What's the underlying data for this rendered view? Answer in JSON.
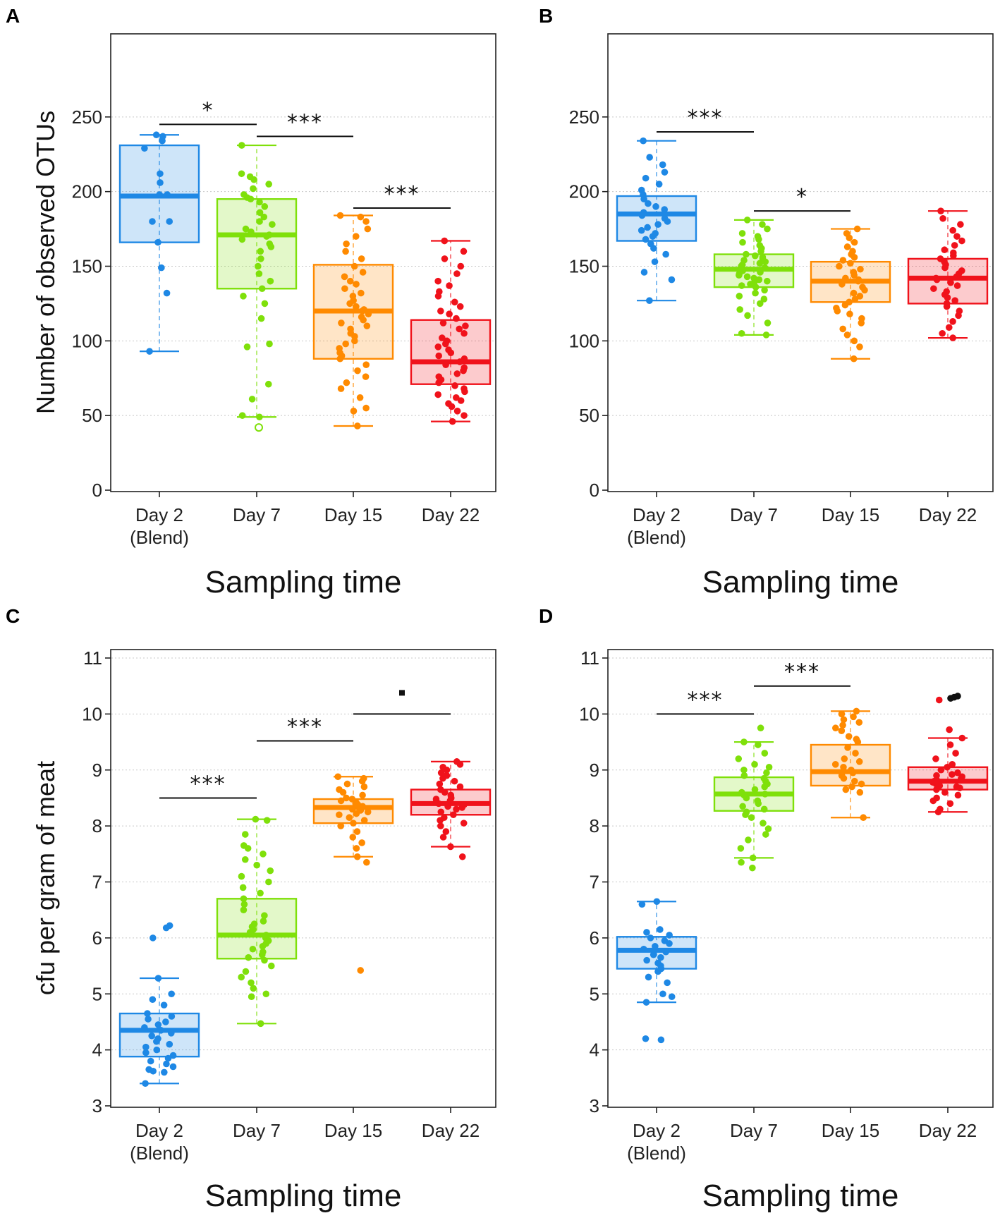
{
  "figure": {
    "x_title": "Sampling time",
    "categories": [
      {
        "line1": "Day 2",
        "line2": "(Blend)"
      },
      {
        "line1": "Day 7",
        "line2": ""
      },
      {
        "line1": "Day 15",
        "line2": ""
      },
      {
        "line1": "Day 22",
        "line2": ""
      }
    ],
    "colors": [
      "#1E88E5",
      "#7FE00A",
      "#FF8A00",
      "#F0121B"
    ]
  },
  "chart_data": [
    {
      "panel": "A",
      "type": "box",
      "xlabel": "Sampling time",
      "ylabel": "Number of observed  OTUs",
      "ylim": [
        0,
        300
      ],
      "yticks": [
        0,
        50,
        100,
        150,
        200,
        250
      ],
      "boxes": [
        {
          "category": "Day 2 (Blend)",
          "q1": 166,
          "median": 197,
          "q3": 231,
          "whisker_low": 93,
          "whisker_high": 238,
          "points": [
            93,
            132,
            149,
            166,
            180,
            180,
            198,
            198,
            206,
            212,
            229,
            234,
            237,
            238
          ]
        },
        {
          "category": "Day 7",
          "q1": 135,
          "median": 171,
          "q3": 195,
          "whisker_low": 49,
          "whisker_high": 231,
          "points": [
            49,
            50,
            61,
            71,
            96,
            98,
            115,
            125,
            130,
            135,
            140,
            145,
            150,
            155,
            160,
            163,
            165,
            168,
            170,
            171,
            173,
            175,
            178,
            180,
            183,
            186,
            190,
            193,
            195,
            196,
            198,
            202,
            205,
            208,
            210,
            212,
            231
          ],
          "outliers_open": [
            42
          ]
        },
        {
          "category": "Day 15",
          "q1": 88,
          "median": 120,
          "q3": 151,
          "whisker_low": 43,
          "whisker_high": 184,
          "points": [
            43,
            53,
            55,
            62,
            68,
            72,
            76,
            80,
            84,
            88,
            90,
            92,
            95,
            98,
            100,
            103,
            105,
            108,
            110,
            112,
            114,
            116,
            118,
            120,
            121,
            123,
            125,
            127,
            130,
            132,
            135,
            138,
            140,
            143,
            146,
            150,
            155,
            160,
            165,
            170,
            175,
            180,
            183,
            184
          ]
        },
        {
          "category": "Day 22",
          "q1": 71,
          "median": 86,
          "q3": 114,
          "whisker_low": 46,
          "whisker_high": 167,
          "points": [
            46,
            50,
            53,
            56,
            58,
            60,
            62,
            64,
            66,
            68,
            70,
            72,
            74,
            76,
            78,
            80,
            82,
            84,
            86,
            88,
            90,
            92,
            94,
            96,
            98,
            100,
            102,
            105,
            108,
            110,
            112,
            115,
            118,
            120,
            123,
            126,
            130,
            133,
            137,
            140,
            145,
            150,
            155,
            160,
            167
          ]
        }
      ],
      "significance": [
        {
          "from": 0,
          "to": 1,
          "y": 245,
          "label": "*"
        },
        {
          "from": 1,
          "to": 2,
          "y": 237,
          "label": "***"
        },
        {
          "from": 2,
          "to": 3,
          "y": 189,
          "label": "***"
        }
      ]
    },
    {
      "panel": "B",
      "type": "box",
      "xlabel": "Sampling time",
      "ylabel": "",
      "ylim": [
        0,
        300
      ],
      "yticks": [
        0,
        50,
        100,
        150,
        200,
        250
      ],
      "boxes": [
        {
          "category": "Day 2 (Blend)",
          "q1": 167,
          "median": 185,
          "q3": 197,
          "whisker_low": 127,
          "whisker_high": 234,
          "points": [
            127,
            141,
            146,
            153,
            158,
            162,
            165,
            168,
            170,
            172,
            174,
            176,
            178,
            180,
            182,
            184,
            186,
            188,
            190,
            192,
            195,
            198,
            201,
            205,
            209,
            213,
            218,
            223,
            234
          ]
        },
        {
          "category": "Day 7",
          "q1": 136,
          "median": 148,
          "q3": 158,
          "whisker_low": 104,
          "whisker_high": 181,
          "points": [
            104,
            105,
            112,
            117,
            121,
            125,
            128,
            130,
            132,
            134,
            136,
            137,
            138,
            139,
            140,
            141,
            142,
            143,
            144,
            145,
            146,
            147,
            148,
            149,
            150,
            151,
            152,
            153,
            154,
            155,
            156,
            157,
            158,
            160,
            162,
            164,
            166,
            168,
            170,
            172,
            175,
            178,
            181
          ]
        },
        {
          "category": "Day 15",
          "q1": 126,
          "median": 140,
          "q3": 153,
          "whisker_low": 88,
          "whisker_high": 175,
          "points": [
            88,
            96,
            100,
            104,
            108,
            112,
            115,
            118,
            120,
            122,
            124,
            126,
            128,
            130,
            132,
            134,
            136,
            138,
            140,
            141,
            142,
            144,
            146,
            148,
            150,
            152,
            154,
            156,
            158,
            160,
            163,
            166,
            169,
            172,
            175
          ]
        },
        {
          "category": "Day 22",
          "q1": 125,
          "median": 142,
          "q3": 155,
          "whisker_low": 102,
          "whisker_high": 187,
          "points": [
            102,
            105,
            109,
            113,
            117,
            120,
            123,
            125,
            127,
            129,
            131,
            133,
            135,
            137,
            139,
            141,
            142,
            143,
            145,
            147,
            149,
            151,
            153,
            155,
            157,
            159,
            161,
            164,
            167,
            170,
            174,
            178,
            182,
            187
          ]
        }
      ],
      "significance": [
        {
          "from": 0,
          "to": 1,
          "y": 240,
          "label": "***"
        },
        {
          "from": 1,
          "to": 2,
          "y": 187,
          "label": "*"
        }
      ]
    },
    {
      "panel": "C",
      "type": "box",
      "xlabel": "Sampling time",
      "ylabel": "cfu per gram of meat",
      "ylim": [
        3,
        11
      ],
      "yticks": [
        3,
        4,
        5,
        6,
        7,
        8,
        9,
        10,
        11
      ],
      "boxes": [
        {
          "category": "Day 2 (Blend)",
          "q1": 3.88,
          "median": 4.35,
          "q3": 4.65,
          "whisker_low": 3.4,
          "whisker_high": 5.28,
          "points": [
            3.4,
            3.6,
            3.62,
            3.65,
            3.7,
            3.75,
            3.8,
            3.85,
            3.9,
            3.95,
            4.0,
            4.05,
            4.1,
            4.15,
            4.2,
            4.25,
            4.3,
            4.35,
            4.4,
            4.45,
            4.5,
            4.55,
            4.6,
            4.65,
            4.8,
            4.9,
            5.0,
            5.28,
            6.0,
            6.18,
            6.22
          ]
        },
        {
          "category": "Day 7",
          "q1": 5.63,
          "median": 6.05,
          "q3": 6.7,
          "whisker_low": 4.47,
          "whisker_high": 8.12,
          "points": [
            4.47,
            4.95,
            5.0,
            5.1,
            5.2,
            5.3,
            5.4,
            5.5,
            5.6,
            5.65,
            5.7,
            5.75,
            5.8,
            5.85,
            5.9,
            5.95,
            6.0,
            6.05,
            6.1,
            6.15,
            6.2,
            6.25,
            6.3,
            6.4,
            6.5,
            6.6,
            6.7,
            6.8,
            6.9,
            7.0,
            7.1,
            7.2,
            7.3,
            7.4,
            7.5,
            7.6,
            7.65,
            7.85,
            8.1,
            8.12
          ]
        },
        {
          "category": "Day 15",
          "q1": 8.05,
          "median": 8.33,
          "q3": 8.48,
          "whisker_low": 7.45,
          "whisker_high": 8.88,
          "points": [
            5.42,
            7.35,
            7.45,
            7.6,
            7.7,
            7.8,
            7.9,
            8.0,
            8.05,
            8.1,
            8.15,
            8.2,
            8.22,
            8.25,
            8.28,
            8.3,
            8.33,
            8.35,
            8.38,
            8.4,
            8.42,
            8.45,
            8.48,
            8.5,
            8.55,
            8.6,
            8.65,
            8.7,
            8.75,
            8.8,
            8.85,
            8.88
          ]
        },
        {
          "category": "Day 22",
          "q1": 8.2,
          "median": 8.4,
          "q3": 8.65,
          "whisker_low": 7.63,
          "whisker_high": 9.15,
          "points": [
            7.45,
            7.63,
            7.8,
            7.9,
            8.0,
            8.05,
            8.1,
            8.15,
            8.2,
            8.25,
            8.3,
            8.33,
            8.35,
            8.38,
            8.4,
            8.42,
            8.45,
            8.48,
            8.5,
            8.55,
            8.6,
            8.65,
            8.7,
            8.75,
            8.8,
            8.85,
            8.9,
            8.95,
            9.0,
            9.05,
            9.1,
            9.15
          ]
        }
      ],
      "significance": [
        {
          "from": 0,
          "to": 1,
          "y": 8.5,
          "label": "***"
        },
        {
          "from": 1,
          "to": 2,
          "y": 9.52,
          "label": "***"
        },
        {
          "from": 2,
          "to": 3,
          "y": 10.0,
          "label": "."
        }
      ]
    },
    {
      "panel": "D",
      "type": "box",
      "xlabel": "Sampling time",
      "ylabel": "",
      "ylim": [
        3,
        11
      ],
      "yticks": [
        3,
        4,
        5,
        6,
        7,
        8,
        9,
        10,
        11
      ],
      "boxes": [
        {
          "category": "Day 2 (Blend)",
          "q1": 5.45,
          "median": 5.78,
          "q3": 6.02,
          "whisker_low": 4.85,
          "whisker_high": 6.65,
          "points": [
            4.18,
            4.2,
            4.85,
            4.95,
            5.0,
            5.2,
            5.3,
            5.4,
            5.45,
            5.5,
            5.55,
            5.6,
            5.65,
            5.7,
            5.75,
            5.8,
            5.85,
            5.9,
            5.95,
            6.0,
            6.05,
            6.1,
            6.15,
            6.6,
            6.65
          ]
        },
        {
          "category": "Day 7",
          "q1": 8.27,
          "median": 8.57,
          "q3": 8.87,
          "whisker_low": 7.43,
          "whisker_high": 9.5,
          "points": [
            7.25,
            7.35,
            7.43,
            7.6,
            7.75,
            7.85,
            7.95,
            8.05,
            8.15,
            8.2,
            8.25,
            8.3,
            8.35,
            8.4,
            8.45,
            8.5,
            8.55,
            8.57,
            8.6,
            8.65,
            8.7,
            8.75,
            8.8,
            8.85,
            8.9,
            8.95,
            9.0,
            9.05,
            9.1,
            9.2,
            9.3,
            9.45,
            9.5,
            9.75
          ]
        },
        {
          "category": "Day 15",
          "q1": 8.72,
          "median": 8.97,
          "q3": 9.45,
          "whisker_low": 8.15,
          "whisker_high": 10.05,
          "points": [
            8.15,
            8.6,
            8.65,
            8.7,
            8.75,
            8.8,
            8.85,
            8.9,
            8.95,
            9.0,
            9.05,
            9.1,
            9.15,
            9.2,
            9.3,
            9.4,
            9.5,
            9.55,
            9.6,
            9.7,
            9.75,
            9.8,
            9.85,
            9.9,
            9.95,
            10.0,
            10.05
          ]
        },
        {
          "category": "Day 22",
          "q1": 8.65,
          "median": 8.8,
          "q3": 9.05,
          "whisker_low": 8.25,
          "whisker_high": 9.57,
          "points": [
            8.25,
            8.3,
            8.4,
            8.45,
            8.5,
            8.55,
            8.6,
            8.65,
            8.68,
            8.7,
            8.72,
            8.75,
            8.78,
            8.8,
            8.82,
            8.85,
            8.88,
            8.9,
            8.92,
            8.95,
            9.0,
            9.05,
            9.1,
            9.2,
            9.3,
            9.45,
            9.57,
            9.72,
            10.25
          ],
          "outliers_black": [
            10.28,
            10.3,
            10.32
          ]
        }
      ],
      "significance": [
        {
          "from": 0,
          "to": 1,
          "y": 10.0,
          "label": "***"
        },
        {
          "from": 1,
          "to": 2,
          "y": 10.5,
          "label": "***"
        }
      ]
    }
  ]
}
